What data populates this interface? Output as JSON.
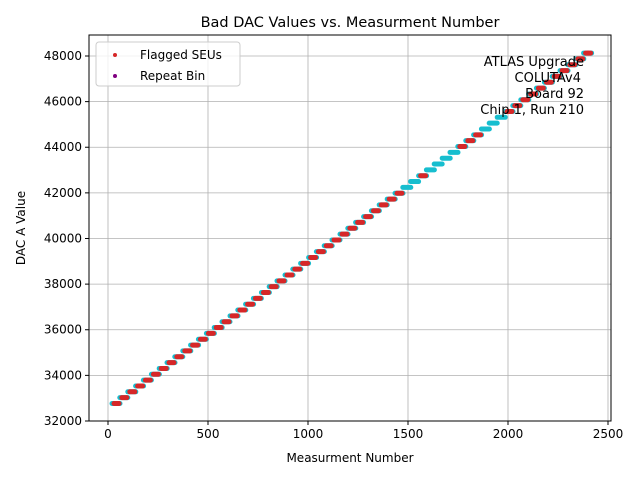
{
  "chart_data": {
    "type": "scatter",
    "title": "Bad DAC Values vs. Measurment Number",
    "xlabel": "Measurment Number",
    "ylabel": "DAC A Value",
    "xlim": [
      -95,
      2515
    ],
    "ylim": [
      32000,
      48920
    ],
    "xticks": [
      0,
      500,
      1000,
      1500,
      2000,
      2500
    ],
    "yticks": [
      32000,
      34000,
      36000,
      38000,
      40000,
      42000,
      44000,
      46000,
      48000
    ],
    "grid": true,
    "legend": {
      "placement": "top-left",
      "entries": [
        {
          "name": "Flagged SEUs",
          "color": "#d62728"
        },
        {
          "name": "Repeat Bin",
          "color": "#800080"
        }
      ]
    },
    "annotation": [
      "ATLAS Upgrade",
      "COLUTAv4",
      "Board 92",
      "Chip 1, Run 210"
    ],
    "colors": {
      "all": "#17becf",
      "flagged": "#d62728"
    },
    "step_length": 40,
    "step_x_start": [
      20,
      59,
      99,
      138,
      177,
      217,
      256,
      295,
      334,
      374,
      413,
      452,
      492,
      531,
      570,
      610,
      649,
      688,
      727,
      767,
      806,
      845,
      885,
      924,
      963,
      1003,
      1042,
      1081,
      1120,
      1160,
      1199,
      1238,
      1278,
      1317,
      1356,
      1396,
      1435,
      1474,
      1513,
      1553,
      1592,
      1631,
      1671,
      1710,
      1749,
      1789,
      1828,
      1867,
      1906,
      1946,
      1985,
      2024,
      2064,
      2103,
      2142,
      2182,
      2221,
      2260,
      2299,
      2339,
      2378
    ],
    "step_y": [
      32768,
      33024,
      33280,
      33536,
      33792,
      34048,
      34304,
      34560,
      34816,
      35072,
      35328,
      35584,
      35840,
      36096,
      36352,
      36608,
      36864,
      37120,
      37376,
      37632,
      37888,
      38144,
      38400,
      38656,
      38912,
      39168,
      39424,
      39680,
      39936,
      40192,
      40448,
      40704,
      40960,
      41216,
      41472,
      41728,
      41984,
      42240,
      42496,
      42752,
      43008,
      43264,
      43520,
      43776,
      44032,
      44288,
      44544,
      44800,
      45056,
      45312,
      45568,
      45824,
      46080,
      46336,
      46592,
      46848,
      47104,
      47360,
      47616,
      47872,
      48128
    ],
    "flagged_steps": [
      0,
      1,
      2,
      3,
      4,
      5,
      6,
      7,
      8,
      9,
      10,
      11,
      12,
      13,
      14,
      15,
      16,
      17,
      18,
      19,
      20,
      21,
      22,
      23,
      24,
      25,
      26,
      27,
      28,
      29,
      30,
      31,
      32,
      33,
      34,
      35,
      36,
      39,
      44,
      45,
      46,
      50,
      51,
      52,
      53,
      54,
      55,
      56,
      57,
      58,
      59,
      60
    ],
    "last_point": [
      2400,
      48128
    ]
  }
}
